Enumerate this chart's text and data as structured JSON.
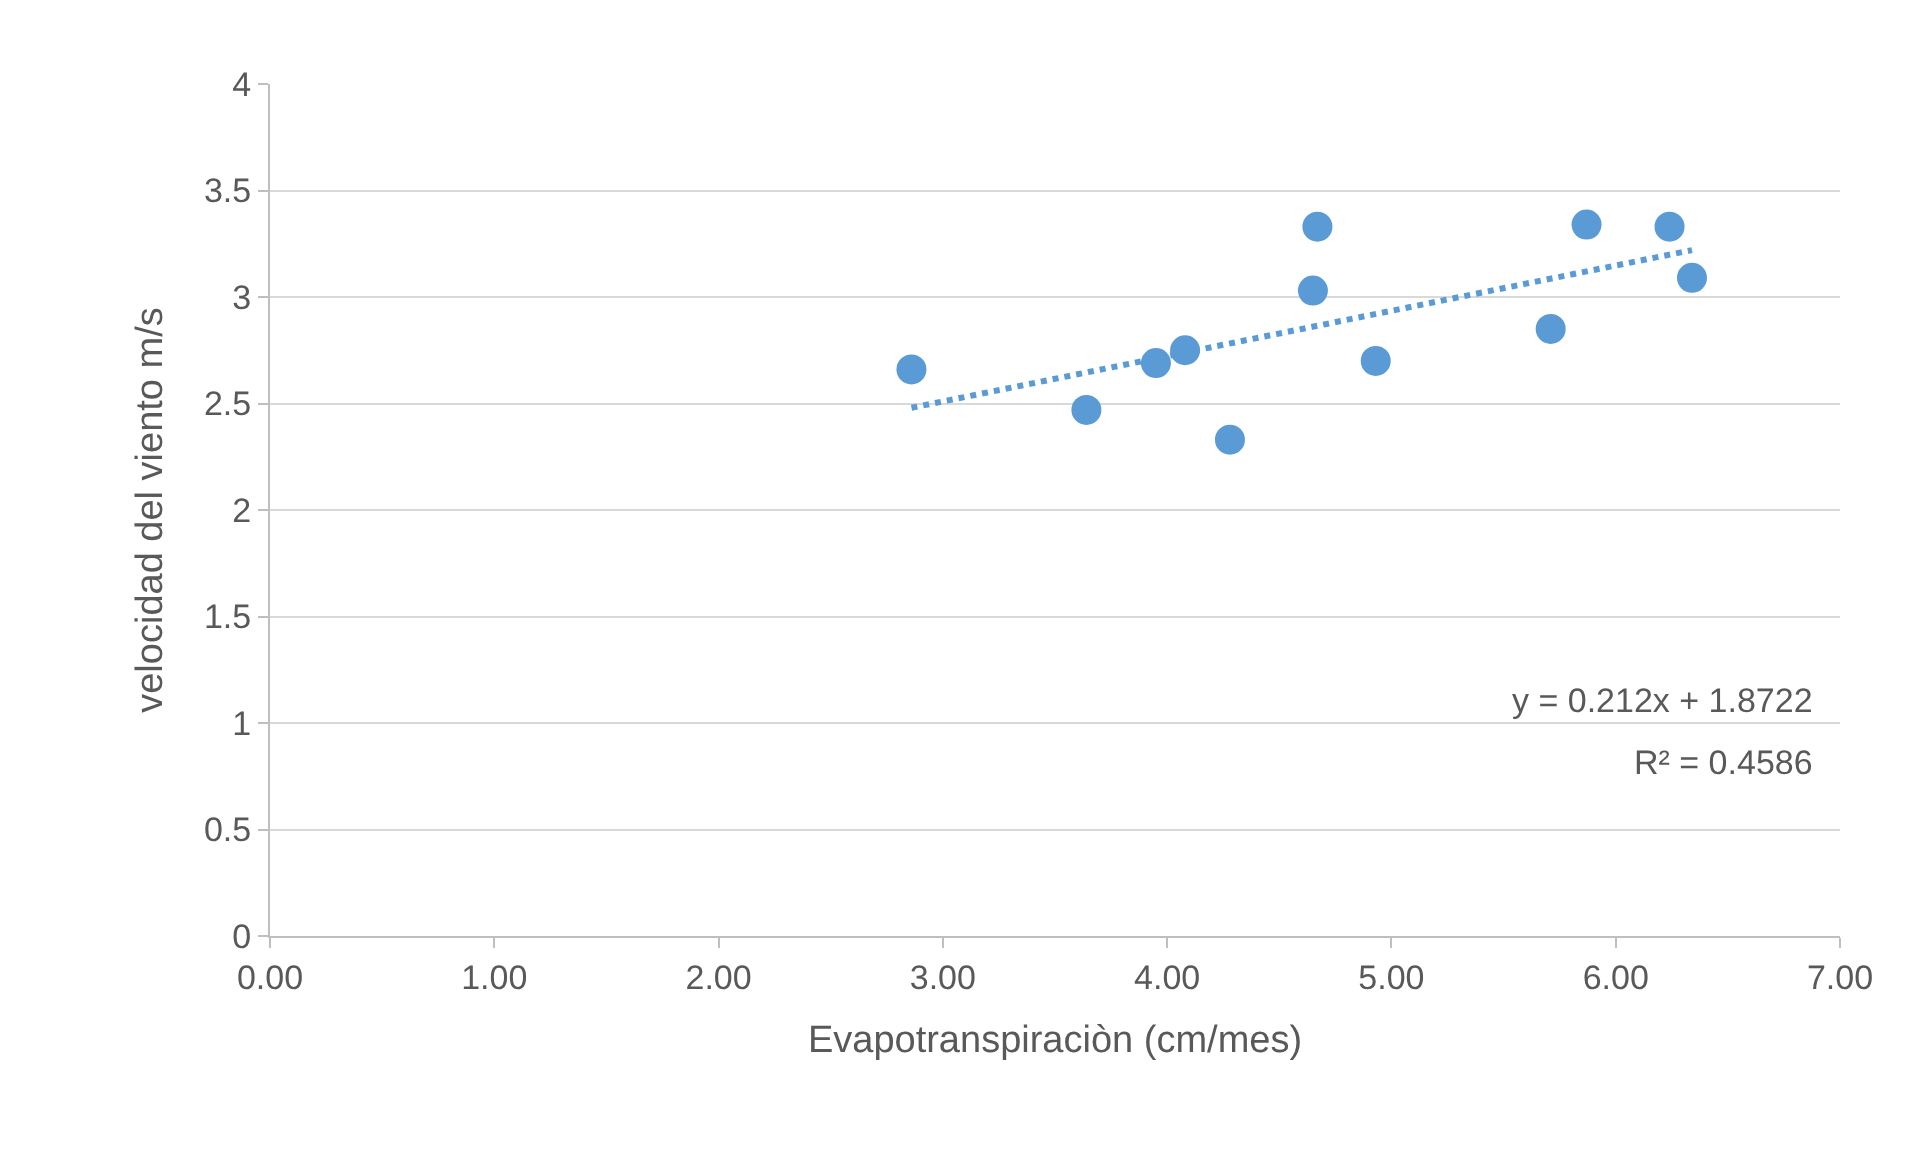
{
  "chart_data": {
    "type": "scatter",
    "xlabel": "Evapotranspiraciòn (cm/mes)",
    "ylabel": "velocidad del viento m/s",
    "series": [
      {
        "color": "#5b9bd5",
        "marker": "circle",
        "x": [
          2.86,
          3.64,
          3.95,
          4.08,
          4.28,
          4.65,
          4.67,
          4.93,
          5.71,
          5.87,
          6.24,
          6.34
        ],
        "values": [
          2.66,
          2.47,
          2.69,
          2.75,
          2.33,
          3.03,
          3.33,
          2.7,
          2.85,
          3.34,
          3.33,
          3.09
        ]
      },
      {
        "type": "line",
        "color": "#5b9bd5",
        "line_style": "dotted",
        "marker": "none",
        "x": [
          2.86,
          6.34
        ],
        "values": [
          2.48,
          3.22
        ]
      }
    ],
    "annotations": [
      "y = 0.212x + 1.8722",
      "R² = 0.4586"
    ],
    "xlim": [
      0,
      7
    ],
    "xticks": [
      {
        "value": 0,
        "label": "0.00"
      },
      {
        "value": 1,
        "label": "1.00"
      },
      {
        "value": 2,
        "label": "2.00"
      },
      {
        "value": 3,
        "label": "3.00"
      },
      {
        "value": 4,
        "label": "4.00"
      },
      {
        "value": 5,
        "label": "5.00"
      },
      {
        "value": 6,
        "label": "6.00"
      },
      {
        "value": 7,
        "label": "7.00"
      }
    ],
    "ylim": [
      0,
      4
    ],
    "yticks": [
      0,
      0.5,
      1,
      1.5,
      2,
      2.5,
      3,
      3.5,
      4
    ],
    "grid": "y"
  }
}
